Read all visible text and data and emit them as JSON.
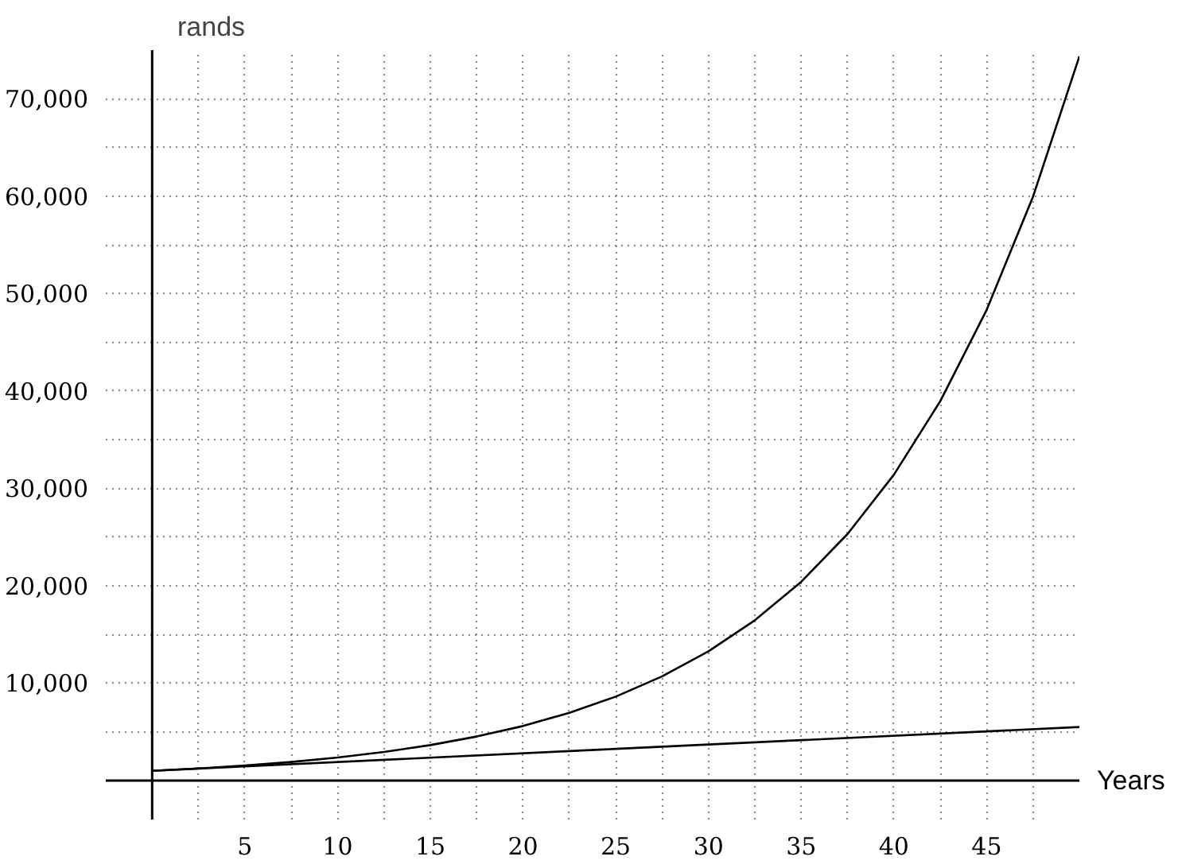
{
  "chart_data": {
    "type": "line",
    "xlabel": "Years",
    "ylabel": "rands",
    "xlim": [
      -2.5,
      50
    ],
    "ylim": [
      -4000,
      75000
    ],
    "xticks": [
      {
        "value": 2.5,
        "label": null
      },
      5,
      {
        "value": 7.5,
        "label": null
      },
      10,
      {
        "value": 12.5,
        "label": null
      },
      15,
      {
        "value": 17.5,
        "label": null
      },
      20,
      {
        "value": 22.5,
        "label": null
      },
      25,
      {
        "value": 27.5,
        "label": null
      },
      30,
      {
        "value": 32.5,
        "label": null
      },
      35,
      {
        "value": 37.5,
        "label": null
      },
      40,
      {
        "value": 42.5,
        "label": null
      },
      45,
      {
        "value": 47.5,
        "label": null
      }
    ],
    "yticks": [
      {
        "value": 5000,
        "label": null
      },
      {
        "value": 10000,
        "label": "10,000"
      },
      {
        "value": 15000,
        "label": null
      },
      {
        "value": 20000,
        "label": "20,000"
      },
      {
        "value": 25000,
        "label": null
      },
      {
        "value": 30000,
        "label": "30,000"
      },
      {
        "value": 35000,
        "label": null
      },
      {
        "value": 40000,
        "label": "40,000"
      },
      {
        "value": 45000,
        "label": null
      },
      {
        "value": 50000,
        "label": "50,000"
      },
      {
        "value": 55000,
        "label": null
      },
      {
        "value": 60000,
        "label": "60,000"
      },
      {
        "value": 65000,
        "label": null
      },
      {
        "value": 70000,
        "label": "70,000"
      }
    ],
    "grid": true,
    "line_style": "solid",
    "marker": "none",
    "series": [
      {
        "color": "#000000",
        "x": [
          0,
          2.5,
          5,
          7.5,
          10,
          12.5,
          15,
          17.5,
          20,
          22.5,
          25,
          27.5,
          30,
          32.5,
          35,
          37.5,
          40,
          42.5,
          45,
          47.5,
          50
        ],
        "values": [
          1000,
          1240,
          1540,
          1910,
          2370,
          2940,
          3640,
          4520,
          5600,
          6950,
          8620,
          10700,
          13270,
          16460,
          20410,
          25320,
          31410,
          38960,
          48330,
          59950,
          74360
        ]
      },
      {
        "color": "#000000",
        "x": [
          0,
          25,
          50
        ],
        "values": [
          1000,
          3250,
          5500
        ]
      }
    ]
  }
}
